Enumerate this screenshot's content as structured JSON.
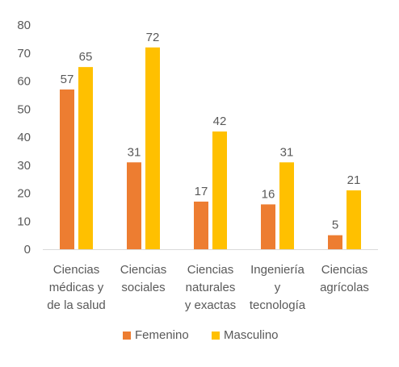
{
  "chart_data": {
    "type": "bar",
    "categories": [
      [
        "Ciencias",
        "médicas y",
        "de la salud"
      ],
      [
        "Ciencias",
        "sociales"
      ],
      [
        "Ciencias",
        "naturales",
        "y exactas"
      ],
      [
        "Ingeniería",
        "y",
        "tecnología"
      ],
      [
        "Ciencias",
        "agrícolas"
      ]
    ],
    "series": [
      {
        "name": "Femenino",
        "values": [
          57,
          31,
          17,
          16,
          5
        ],
        "color": "#ED7D31"
      },
      {
        "name": "Masculino",
        "values": [
          65,
          72,
          42,
          31,
          21
        ],
        "color": "#FFC000"
      }
    ],
    "ylim": [
      0,
      80
    ],
    "yticks": [
      0,
      10,
      20,
      30,
      40,
      50,
      60,
      70,
      80
    ],
    "grid": false,
    "data_labels": true,
    "legend_position": "bottom"
  }
}
